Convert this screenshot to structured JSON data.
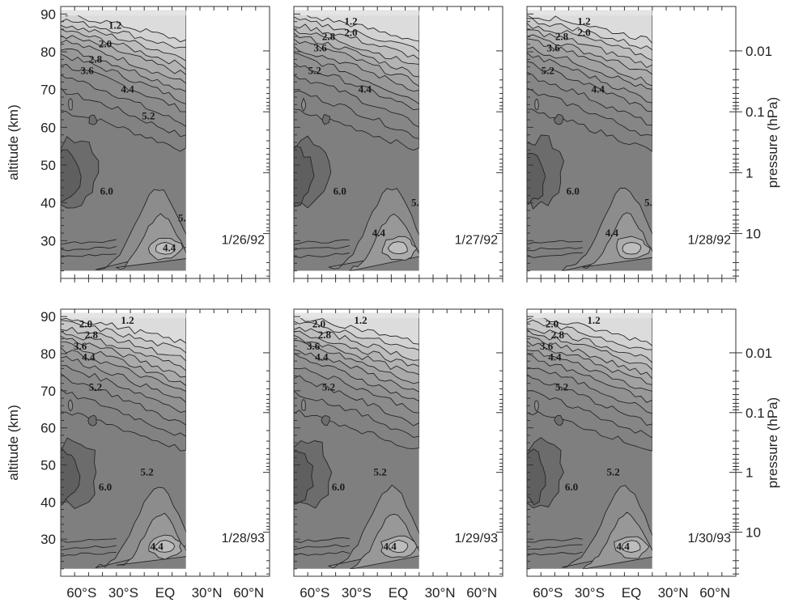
{
  "chart_data": {
    "type": "contour",
    "layout": "2 rows x 3 panels",
    "x_axis": {
      "tick_labels": [
        "60°S",
        "30°S",
        "EQ",
        "30°N",
        "60°N"
      ],
      "tick_values_deg": [
        -60,
        -30,
        0,
        30,
        60
      ],
      "range_deg": [
        -75,
        75
      ],
      "data_coverage_deg": [
        -75,
        15
      ]
    },
    "y_axis_left": {
      "label": "altitude (km)",
      "ticks": [
        "30",
        "40",
        "50",
        "60",
        "70",
        "80",
        "90"
      ],
      "tick_values": [
        30,
        40,
        50,
        60,
        70,
        80,
        90
      ],
      "range": [
        20,
        92
      ],
      "data_coverage": [
        22,
        91
      ]
    },
    "y_axis_right": {
      "label": "pressure (hPa)",
      "ticks": [
        "0.01",
        "0.1",
        "1",
        "10"
      ],
      "tick_values": [
        0.01,
        0.1,
        1,
        10
      ],
      "scale": "log"
    },
    "contour_levels": [
      1.2,
      1.6,
      2.0,
      2.4,
      2.8,
      3.2,
      3.6,
      4.0,
      4.4,
      4.8,
      5.2,
      5.6,
      6.0,
      6.4
    ],
    "panels": [
      {
        "date": "1/26/92",
        "labels": [
          "1.2",
          "2.0",
          "2.8",
          "3.6",
          "4.4",
          "5.2",
          "6.0",
          "5.2",
          "4.4"
        ]
      },
      {
        "date": "1/27/92",
        "labels": [
          "1.2",
          "2.0",
          "2.8",
          "3.6",
          "5.2",
          "4.4",
          "6.0",
          "5.2",
          "4.4"
        ]
      },
      {
        "date": "1/28/92",
        "labels": [
          "1.2",
          "2.0",
          "2.8",
          "3.6",
          "5.2",
          "4.4",
          "6.0",
          "5.2",
          "4.4"
        ]
      },
      {
        "date": "1/28/93",
        "labels": [
          "2.0",
          "1.2",
          "2.8",
          "3.6",
          "4.4",
          "5.2",
          "6.0",
          "5.2",
          "4.4"
        ]
      },
      {
        "date": "1/29/93",
        "labels": [
          "2.0",
          "1.2",
          "2.8",
          "3.6",
          "4.4",
          "5.2",
          "6.0",
          "5.2",
          "4.4"
        ]
      },
      {
        "date": "1/30/93",
        "labels": [
          "2.0",
          "1.2",
          "2.8",
          "3.6",
          "4.4",
          "5.2",
          "6.0",
          "5.2",
          "4.4"
        ]
      }
    ]
  }
}
